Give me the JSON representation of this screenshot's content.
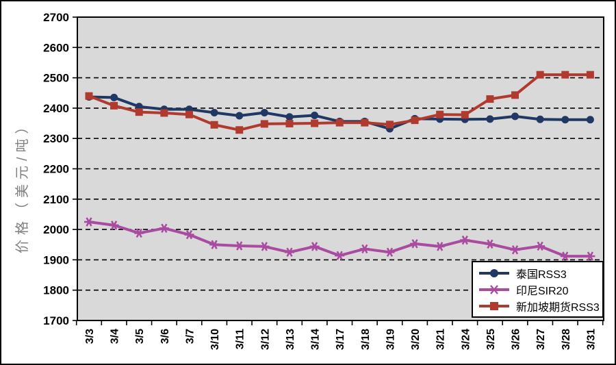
{
  "chart_data": {
    "type": "line",
    "title": "",
    "xlabel": "",
    "ylabel": "价格（美元/吨）",
    "ylim": [
      1700,
      2700
    ],
    "ytick_step": 100,
    "grid": "horizontal-dashed",
    "grid_color": "#000000",
    "plot_background": "#d9d9d9",
    "legend_position": "inside-bottom-right",
    "categories": [
      "3/3",
      "3/4",
      "3/5",
      "3/6",
      "3/7",
      "3/10",
      "3/11",
      "3/12",
      "3/13",
      "3/14",
      "3/17",
      "3/18",
      "3/19",
      "3/20",
      "3/21",
      "3/24",
      "3/25",
      "3/26",
      "3/27",
      "3/28",
      "3/31"
    ],
    "series": [
      {
        "name": "泰国RSS3",
        "color": "#1f3864",
        "marker": "circle",
        "values": [
          2437,
          2435,
          2405,
          2396,
          2396,
          2385,
          2375,
          2385,
          2371,
          2376,
          2356,
          2356,
          2332,
          2365,
          2364,
          2363,
          2364,
          2373,
          2363,
          2362,
          2362
        ]
      },
      {
        "name": "印尼SIR20",
        "color": "#a94ba0",
        "marker": "asterisk",
        "values": [
          2025,
          2014,
          1988,
          2004,
          1983,
          1950,
          1946,
          1944,
          1925,
          1944,
          1914,
          1936,
          1925,
          1953,
          1944,
          1965,
          1952,
          1933,
          1945,
          1912,
          1912
        ]
      },
      {
        "name": "新加坡期货RSS3",
        "color": "#b03a2e",
        "marker": "square",
        "values": [
          2440,
          2408,
          2387,
          2384,
          2379,
          2345,
          2328,
          2348,
          2349,
          2350,
          2352,
          2352,
          2346,
          2360,
          2379,
          2378,
          2430,
          2443,
          2510,
          2510,
          2510
        ]
      }
    ]
  }
}
